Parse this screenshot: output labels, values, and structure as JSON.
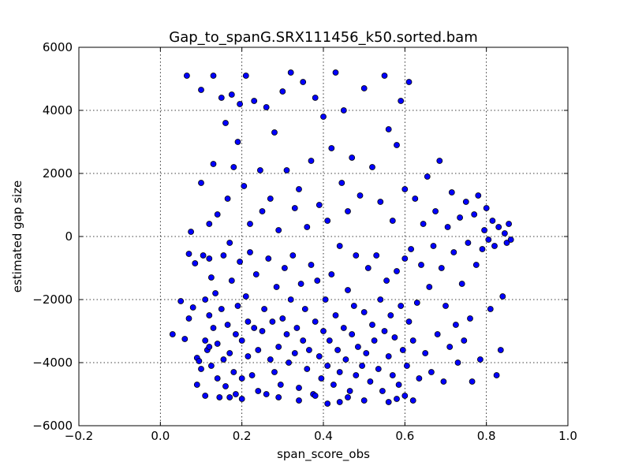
{
  "chart_data": {
    "type": "scatter",
    "title": "Gap_to_spanG.SRX111456_k50.sorted.bam",
    "xlabel": "span_score_obs",
    "ylabel": "estimated gap size",
    "xlim": [
      -0.2,
      1.0
    ],
    "ylim": [
      -6000,
      6000
    ],
    "xticks": [
      -0.2,
      0.0,
      0.2,
      0.4,
      0.6,
      0.8,
      1.0
    ],
    "xtick_labels": [
      "−0.2",
      "0.0",
      "0.2",
      "0.4",
      "0.6",
      "0.8",
      "1.0"
    ],
    "yticks": [
      -6000,
      -4000,
      -2000,
      0,
      2000,
      4000,
      6000
    ],
    "ytick_labels": [
      "−6000",
      "−4000",
      "−2000",
      "0",
      "2000",
      "4000",
      "6000"
    ],
    "grid": true,
    "marker_color": "#0000ff",
    "marker_edge_color": "#000000",
    "series": [
      {
        "points": [
          [
            0.03,
            -3100
          ],
          [
            0.05,
            -2050
          ],
          [
            0.06,
            -3250
          ],
          [
            0.065,
            5100
          ],
          [
            0.07,
            -2600
          ],
          [
            0.07,
            -550
          ],
          [
            0.075,
            150
          ],
          [
            0.08,
            -2250
          ],
          [
            0.085,
            -850
          ],
          [
            0.09,
            -3850
          ],
          [
            0.09,
            -4700
          ],
          [
            0.095,
            -3950
          ],
          [
            0.1,
            -4200
          ],
          [
            0.1,
            1700
          ],
          [
            0.1,
            4650
          ],
          [
            0.105,
            -600
          ],
          [
            0.11,
            -3300
          ],
          [
            0.11,
            -2000
          ],
          [
            0.11,
            -5050
          ],
          [
            0.115,
            -3600
          ],
          [
            0.12,
            -3500
          ],
          [
            0.12,
            -2500
          ],
          [
            0.12,
            -700
          ],
          [
            0.12,
            400
          ],
          [
            0.125,
            -1300
          ],
          [
            0.125,
            -4100
          ],
          [
            0.13,
            -2900
          ],
          [
            0.13,
            2300
          ],
          [
            0.13,
            5100
          ],
          [
            0.135,
            -1800
          ],
          [
            0.14,
            -3400
          ],
          [
            0.14,
            -4500
          ],
          [
            0.14,
            700
          ],
          [
            0.145,
            -5100
          ],
          [
            0.15,
            -2300
          ],
          [
            0.15,
            4400
          ],
          [
            0.155,
            -3900
          ],
          [
            0.155,
            -600
          ],
          [
            0.16,
            3600
          ],
          [
            0.16,
            -4750
          ],
          [
            0.165,
            1200
          ],
          [
            0.165,
            -2800
          ],
          [
            0.17,
            -3700
          ],
          [
            0.17,
            -200
          ],
          [
            0.175,
            -1400
          ],
          [
            0.175,
            4500
          ],
          [
            0.18,
            -4300
          ],
          [
            0.18,
            2200
          ],
          [
            0.185,
            -3100
          ],
          [
            0.185,
            -5000
          ],
          [
            0.19,
            3000
          ],
          [
            0.19,
            -2200
          ],
          [
            0.195,
            -800
          ],
          [
            0.195,
            4200
          ],
          [
            0.2,
            -3300
          ],
          [
            0.2,
            -4500
          ],
          [
            0.205,
            1600
          ],
          [
            0.21,
            -1900
          ],
          [
            0.21,
            5100
          ],
          [
            0.215,
            -2700
          ],
          [
            0.215,
            -3800
          ],
          [
            0.22,
            400
          ],
          [
            0.22,
            -500
          ],
          [
            0.225,
            -4400
          ],
          [
            0.23,
            -2900
          ],
          [
            0.23,
            4300
          ],
          [
            0.235,
            -1200
          ],
          [
            0.24,
            -3600
          ],
          [
            0.24,
            -4900
          ],
          [
            0.245,
            2100
          ],
          [
            0.25,
            -3000
          ],
          [
            0.25,
            800
          ],
          [
            0.255,
            -2300
          ],
          [
            0.26,
            -5000
          ],
          [
            0.26,
            4100
          ],
          [
            0.265,
            -700
          ],
          [
            0.27,
            -3900
          ],
          [
            0.27,
            1200
          ],
          [
            0.275,
            -2700
          ],
          [
            0.28,
            -4300
          ],
          [
            0.28,
            3300
          ],
          [
            0.285,
            -1600
          ],
          [
            0.29,
            -3500
          ],
          [
            0.29,
            200
          ],
          [
            0.295,
            -4700
          ],
          [
            0.3,
            -2600
          ],
          [
            0.3,
            4600
          ],
          [
            0.305,
            -1000
          ],
          [
            0.31,
            -3100
          ],
          [
            0.31,
            2100
          ],
          [
            0.315,
            -4000
          ],
          [
            0.32,
            -2000
          ],
          [
            0.32,
            5200
          ],
          [
            0.325,
            -600
          ],
          [
            0.33,
            -3700
          ],
          [
            0.33,
            900
          ],
          [
            0.335,
            -2900
          ],
          [
            0.34,
            -4800
          ],
          [
            0.34,
            1500
          ],
          [
            0.345,
            -1500
          ],
          [
            0.35,
            -3300
          ],
          [
            0.35,
            4900
          ],
          [
            0.355,
            -2300
          ],
          [
            0.36,
            -4200
          ],
          [
            0.36,
            300
          ],
          [
            0.365,
            -3600
          ],
          [
            0.37,
            -900
          ],
          [
            0.37,
            2400
          ],
          [
            0.375,
            -5000
          ],
          [
            0.38,
            -2700
          ],
          [
            0.38,
            4400
          ],
          [
            0.385,
            -1400
          ],
          [
            0.39,
            -3800
          ],
          [
            0.39,
            1000
          ],
          [
            0.395,
            -4500
          ],
          [
            0.4,
            -3000
          ],
          [
            0.4,
            3800
          ],
          [
            0.405,
            -2000
          ],
          [
            0.41,
            -4100
          ],
          [
            0.41,
            500
          ],
          [
            0.415,
            -3300
          ],
          [
            0.42,
            -1200
          ],
          [
            0.42,
            2800
          ],
          [
            0.425,
            -4700
          ],
          [
            0.43,
            -2500
          ],
          [
            0.43,
            5200
          ],
          [
            0.435,
            -3600
          ],
          [
            0.44,
            -300
          ],
          [
            0.44,
            -4300
          ],
          [
            0.445,
            1700
          ],
          [
            0.45,
            -2900
          ],
          [
            0.45,
            4000
          ],
          [
            0.455,
            -3900
          ],
          [
            0.46,
            -1700
          ],
          [
            0.46,
            800
          ],
          [
            0.465,
            -4900
          ],
          [
            0.47,
            -3100
          ],
          [
            0.47,
            2500
          ],
          [
            0.475,
            -2200
          ],
          [
            0.48,
            -4400
          ],
          [
            0.48,
            -600
          ],
          [
            0.485,
            -3500
          ],
          [
            0.49,
            1300
          ],
          [
            0.495,
            -4100
          ],
          [
            0.5,
            -2400
          ],
          [
            0.5,
            4700
          ],
          [
            0.505,
            -3700
          ],
          [
            0.51,
            -1000
          ],
          [
            0.515,
            -4600
          ],
          [
            0.52,
            -2800
          ],
          [
            0.52,
            2200
          ],
          [
            0.525,
            -3300
          ],
          [
            0.53,
            -600
          ],
          [
            0.535,
            -4200
          ],
          [
            0.54,
            1100
          ],
          [
            0.54,
            -2000
          ],
          [
            0.545,
            -4900
          ],
          [
            0.55,
            -3000
          ],
          [
            0.55,
            5100
          ],
          [
            0.555,
            -1400
          ],
          [
            0.56,
            -3800
          ],
          [
            0.56,
            3400
          ],
          [
            0.565,
            -2500
          ],
          [
            0.57,
            -4400
          ],
          [
            0.57,
            500
          ],
          [
            0.575,
            -3200
          ],
          [
            0.58,
            -1100
          ],
          [
            0.58,
            2900
          ],
          [
            0.585,
            -4700
          ],
          [
            0.59,
            -2200
          ],
          [
            0.59,
            4300
          ],
          [
            0.595,
            -3600
          ],
          [
            0.6,
            -700
          ],
          [
            0.6,
            1500
          ],
          [
            0.605,
            -4100
          ],
          [
            0.61,
            -2700
          ],
          [
            0.61,
            4900
          ],
          [
            0.615,
            -400
          ],
          [
            0.62,
            -3300
          ],
          [
            0.625,
            1200
          ],
          [
            0.63,
            -2100
          ],
          [
            0.635,
            -4500
          ],
          [
            0.64,
            -900
          ],
          [
            0.645,
            400
          ],
          [
            0.65,
            -3700
          ],
          [
            0.655,
            1900
          ],
          [
            0.66,
            -1600
          ],
          [
            0.665,
            -4300
          ],
          [
            0.67,
            -300
          ],
          [
            0.675,
            800
          ],
          [
            0.68,
            -3100
          ],
          [
            0.685,
            2400
          ],
          [
            0.69,
            -1000
          ],
          [
            0.695,
            -4600
          ],
          [
            0.7,
            -2200
          ],
          [
            0.705,
            300
          ],
          [
            0.71,
            -3500
          ],
          [
            0.715,
            1400
          ],
          [
            0.72,
            -500
          ],
          [
            0.725,
            -2800
          ],
          [
            0.73,
            -4000
          ],
          [
            0.735,
            600
          ],
          [
            0.74,
            -1500
          ],
          [
            0.745,
            -3300
          ],
          [
            0.75,
            1100
          ],
          [
            0.755,
            -200
          ],
          [
            0.76,
            -2600
          ],
          [
            0.765,
            -4600
          ],
          [
            0.77,
            700
          ],
          [
            0.775,
            -900
          ],
          [
            0.78,
            1300
          ],
          [
            0.785,
            -3900
          ],
          [
            0.79,
            -400
          ],
          [
            0.795,
            200
          ],
          [
            0.8,
            900
          ],
          [
            0.805,
            -100
          ],
          [
            0.81,
            -2300
          ],
          [
            0.815,
            500
          ],
          [
            0.82,
            -300
          ],
          [
            0.825,
            -4400
          ],
          [
            0.83,
            300
          ],
          [
            0.835,
            -3600
          ],
          [
            0.84,
            -1900
          ],
          [
            0.845,
            100
          ],
          [
            0.85,
            -200
          ],
          [
            0.855,
            400
          ],
          [
            0.86,
            -100
          ],
          [
            0.62,
            -5200
          ],
          [
            0.58,
            -5150
          ],
          [
            0.44,
            -5250
          ],
          [
            0.41,
            -5300
          ],
          [
            0.34,
            -5200
          ],
          [
            0.2,
            -5150
          ],
          [
            0.17,
            -5100
          ],
          [
            0.29,
            -5100
          ],
          [
            0.5,
            -5200
          ],
          [
            0.6,
            -5050
          ],
          [
            0.46,
            -5100
          ],
          [
            0.38,
            -5050
          ],
          [
            0.56,
            -5250
          ]
        ]
      }
    ]
  }
}
